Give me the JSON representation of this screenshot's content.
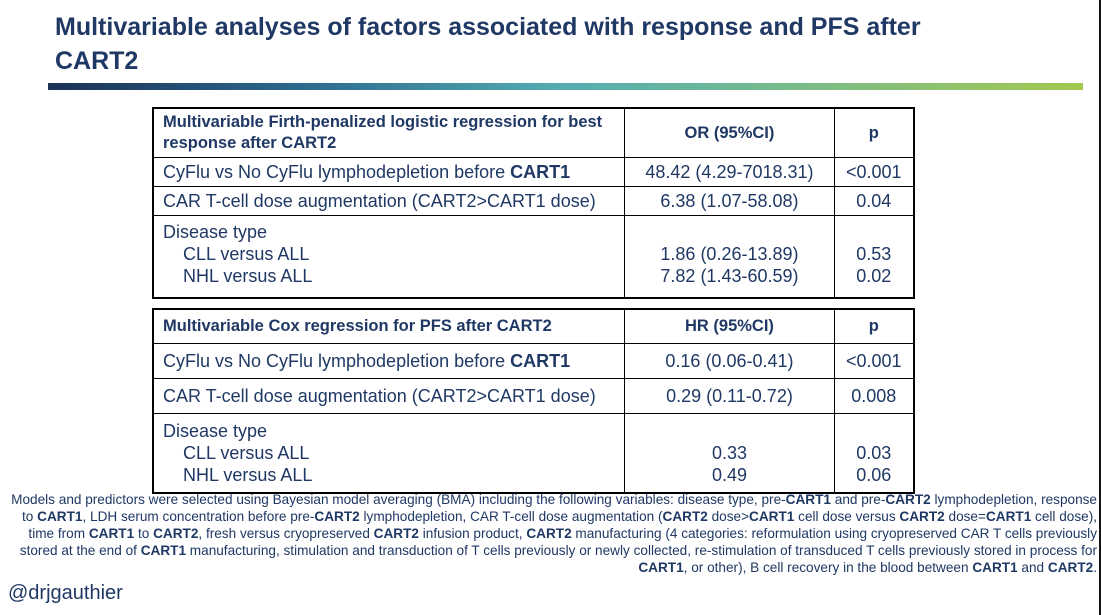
{
  "title": {
    "text": "Multivariable analyses of factors associated with response and PFS after CART2"
  },
  "colors": {
    "text_navy": "#1f3864",
    "table_border": "#000000",
    "underline_gradient_start": "#1b3156",
    "underline_gradient_mid": "#54aeb2",
    "underline_gradient_end": "#a2c84f"
  },
  "bold_tokens": [
    "CART1",
    "CART2"
  ],
  "table1": {
    "header": {
      "label": "Multivariable Firth-penalized logistic regression for best response after CART2",
      "col2": "OR (95%CI)",
      "col3": "p"
    },
    "rows": [
      {
        "label": "CyFlu vs No CyFlu lymphodepletion before CART1",
        "value": "48.42 (4.29-7018.31)",
        "p": "<0.001"
      },
      {
        "label": "CAR T-cell dose augmentation (CART2>CART1 dose)",
        "value": "6.38 (1.07-58.08)",
        "p": "0.04"
      },
      {
        "group_label": "Disease type",
        "sub_rows": [
          {
            "label": "CLL versus ALL",
            "value": "1.86 (0.26-13.89)",
            "p": "0.53"
          },
          {
            "label": "NHL versus ALL",
            "value": "7.82 (1.43-60.59)",
            "p": "0.02"
          }
        ]
      }
    ]
  },
  "table2": {
    "header": {
      "label": "Multivariable Cox regression for PFS after CART2",
      "col2": "HR (95%CI)",
      "col3": "p"
    },
    "rows": [
      {
        "label": "CyFlu vs No CyFlu lymphodepletion before CART1",
        "value": "0.16 (0.06-0.41)",
        "p": "<0.001"
      },
      {
        "label": "CAR T-cell dose augmentation (CART2>CART1 dose)",
        "value": "0.29 (0.11-0.72)",
        "p": "0.008"
      },
      {
        "group_label": "Disease type",
        "sub_rows": [
          {
            "label": "CLL versus ALL",
            "value": "0.33",
            "p": "0.03"
          },
          {
            "label": "NHL versus ALL",
            "value": "0.49",
            "p": "0.06"
          }
        ]
      }
    ]
  },
  "footnote": {
    "text": "Models and predictors were selected using Bayesian model averaging (BMA) including the following variables: disease type, pre-CART1 and pre-CART2 lymphodepletion, response to CART1, LDH serum concentration before pre-CART2 lymphodepletion, CAR T-cell dose augmentation (CART2 dose>CART1 cell dose versus CART2 dose=CART1 cell dose), time from CART1 to CART2, fresh versus cryopreserved CART2 infusion product, CART2 manufacturing (4 categories: reformulation using cryopreserved CAR T cells previously stored at the end of CART1 manufacturing, stimulation and transduction of T cells previously or newly collected, re-stimulation of transduced T cells previously stored in process for CART1, or other), B cell recovery in the blood between CART1 and CART2."
  },
  "handle": {
    "text": "@drjgauthier"
  }
}
